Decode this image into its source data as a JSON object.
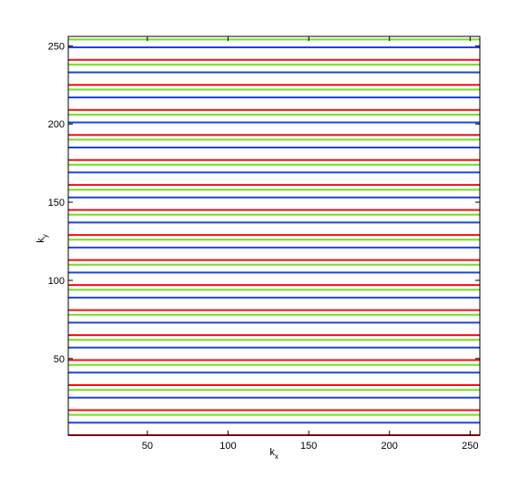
{
  "chart_data": {
    "type": "hlines",
    "xlabel": {
      "base": "k",
      "sub": "x"
    },
    "ylabel": {
      "base": "k",
      "sub": "y"
    },
    "xlim": [
      1,
      256
    ],
    "ylim": [
      1,
      256
    ],
    "xticks": [
      50,
      100,
      150,
      200,
      250
    ],
    "yticks": [
      50,
      100,
      150,
      200,
      250
    ],
    "series": [
      {
        "color": "#ee1111",
        "values": [
          1,
          17,
          33,
          49,
          65,
          81,
          97,
          113,
          129,
          145,
          161,
          177,
          193,
          209,
          225,
          241
        ]
      },
      {
        "color": "#2244dd",
        "values": [
          9,
          25,
          41,
          57,
          73,
          89,
          105,
          121,
          137,
          153,
          169,
          185,
          201,
          217,
          233,
          249
        ]
      },
      {
        "color": "#77dd22",
        "values": [
          14,
          30,
          46,
          62,
          78,
          94,
          110,
          126,
          142,
          158,
          174,
          190,
          206,
          222,
          238,
          254
        ]
      }
    ]
  }
}
